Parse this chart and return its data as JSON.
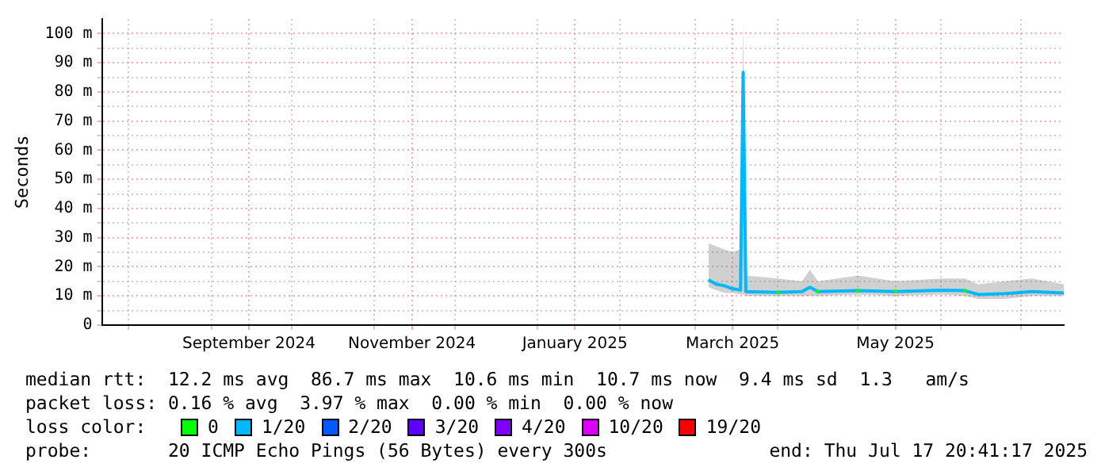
{
  "chart_data": {
    "type": "line",
    "ylabel": "Seconds",
    "legend_title": "loss color:",
    "legend": "bottom",
    "grid": true,
    "marker": "none",
    "line_style": "solid",
    "xlim": [
      "2024-07-22",
      "2025-07-17"
    ],
    "xticks": [
      {
        "value": "2024-08-01",
        "label": null
      },
      {
        "value": "2024-09-01",
        "label": null
      },
      {
        "value": "2024-09-15",
        "label": "September 2024"
      },
      {
        "value": "2024-10-01",
        "label": null
      },
      {
        "value": "2024-11-01",
        "label": null
      },
      {
        "value": "2024-11-15",
        "label": "November 2024"
      },
      {
        "value": "2024-12-01",
        "label": null
      },
      {
        "value": "2025-01-01",
        "label": null
      },
      {
        "value": "2025-01-15",
        "label": "January 2025"
      },
      {
        "value": "2025-02-01",
        "label": null
      },
      {
        "value": "2025-03-01",
        "label": null
      },
      {
        "value": "2025-03-15",
        "label": "March 2025"
      },
      {
        "value": "2025-04-01",
        "label": null
      },
      {
        "value": "2025-05-01",
        "label": null
      },
      {
        "value": "2025-05-15",
        "label": "May 2025"
      },
      {
        "value": "2025-06-01",
        "label": null
      },
      {
        "value": "2025-07-01",
        "label": null
      }
    ],
    "ylim": [
      0,
      105
    ],
    "yticks": [
      0,
      {
        "value": 5,
        "label": null
      },
      {
        "value": 10,
        "label": "10 m"
      },
      {
        "value": 15,
        "label": null
      },
      {
        "value": 20,
        "label": "20 m"
      },
      {
        "value": 25,
        "label": null
      },
      {
        "value": 30,
        "label": "30 m"
      },
      {
        "value": 35,
        "label": null
      },
      {
        "value": 40,
        "label": "40 m"
      },
      {
        "value": 45,
        "label": null
      },
      {
        "value": 50,
        "label": "50 m"
      },
      {
        "value": 55,
        "label": null
      },
      {
        "value": 60,
        "label": "60 m"
      },
      {
        "value": 65,
        "label": null
      },
      {
        "value": 70,
        "label": "70 m"
      },
      {
        "value": 75,
        "label": null
      },
      {
        "value": 80,
        "label": "80 m"
      },
      {
        "value": 85,
        "label": null
      },
      {
        "value": 90,
        "label": "90 m"
      },
      {
        "value": 95,
        "label": null
      },
      {
        "value": 100,
        "label": "100 m"
      }
    ],
    "x": [
      "2025-03-06",
      "2025-03-09",
      "2025-03-12",
      "2025-03-15",
      "2025-03-18",
      "2025-03-19",
      "2025-03-20",
      "2025-04-01",
      "2025-04-10",
      "2025-04-13",
      "2025-04-16",
      "2025-05-01",
      "2025-05-15",
      "2025-06-01",
      "2025-06-10",
      "2025-06-15",
      "2025-06-25",
      "2025-07-05",
      "2025-07-17"
    ],
    "series": [
      {
        "name": "0",
        "color": "#00ff00",
        "type": "scatter",
        "marker": "square",
        "values": [
          null,
          null,
          null,
          null,
          null,
          null,
          null,
          11.2,
          null,
          null,
          11.5,
          11.8,
          11.5,
          null,
          11.8,
          null,
          null,
          null,
          null
        ]
      },
      {
        "name": "1/20",
        "color": "#00b8ff",
        "values": [
          15.5,
          14,
          13.5,
          12.5,
          12,
          86.7,
          11.5,
          11.2,
          11.5,
          13,
          11.5,
          11.8,
          11.5,
          12,
          11.8,
          10.5,
          10.8,
          11.5,
          11
        ],
        "lower": [
          13,
          12,
          11,
          11,
          10.5,
          10.5,
          10,
          10,
          10,
          10,
          10,
          10.5,
          10,
          10.5,
          10,
          9,
          9,
          10,
          10
        ],
        "upper": [
          28,
          27,
          26,
          25,
          26,
          104,
          17,
          16,
          15,
          19,
          15,
          17,
          15,
          16,
          16,
          14,
          15,
          16,
          14
        ]
      },
      {
        "name": "2/20",
        "color": "#0059ff",
        "values": [
          null,
          null,
          null,
          null,
          null,
          null,
          null,
          null,
          null,
          null,
          null,
          null,
          null,
          null,
          null,
          null,
          null,
          null,
          null
        ]
      },
      {
        "name": "3/20",
        "color": "#5e00ff",
        "values": [
          null,
          null,
          null,
          null,
          null,
          null,
          null,
          null,
          null,
          null,
          null,
          null,
          null,
          null,
          null,
          null,
          null,
          null,
          null
        ]
      },
      {
        "name": "4/20",
        "color": "#7e00ff",
        "values": [
          null,
          null,
          null,
          null,
          null,
          null,
          null,
          null,
          null,
          null,
          null,
          null,
          null,
          null,
          null,
          null,
          null,
          null,
          null
        ]
      },
      {
        "name": "10/20",
        "color": "#dd00ff",
        "values": [
          null,
          null,
          null,
          null,
          null,
          null,
          null,
          null,
          null,
          null,
          null,
          null,
          null,
          null,
          null,
          null,
          null,
          null,
          null
        ]
      },
      {
        "name": "19/20",
        "color": "#ff0000",
        "values": [
          null,
          null,
          null,
          null,
          null,
          null,
          null,
          null,
          null,
          null,
          null,
          null,
          null,
          null,
          null,
          null,
          null,
          null,
          null
        ]
      }
    ],
    "annotations": [
      "median rtt:  12.2 ms avg  86.7 ms max  10.6 ms min  10.7 ms now  9.4 ms sd  1.3   am/s",
      "packet loss: 0.16 % avg  3.97 % max  0.00 % min  0.00 % now",
      "probe:       20 ICMP Echo Pings (56 Bytes) every 300s",
      "end: Thu Jul 17 20:41:17 2025"
    ]
  }
}
